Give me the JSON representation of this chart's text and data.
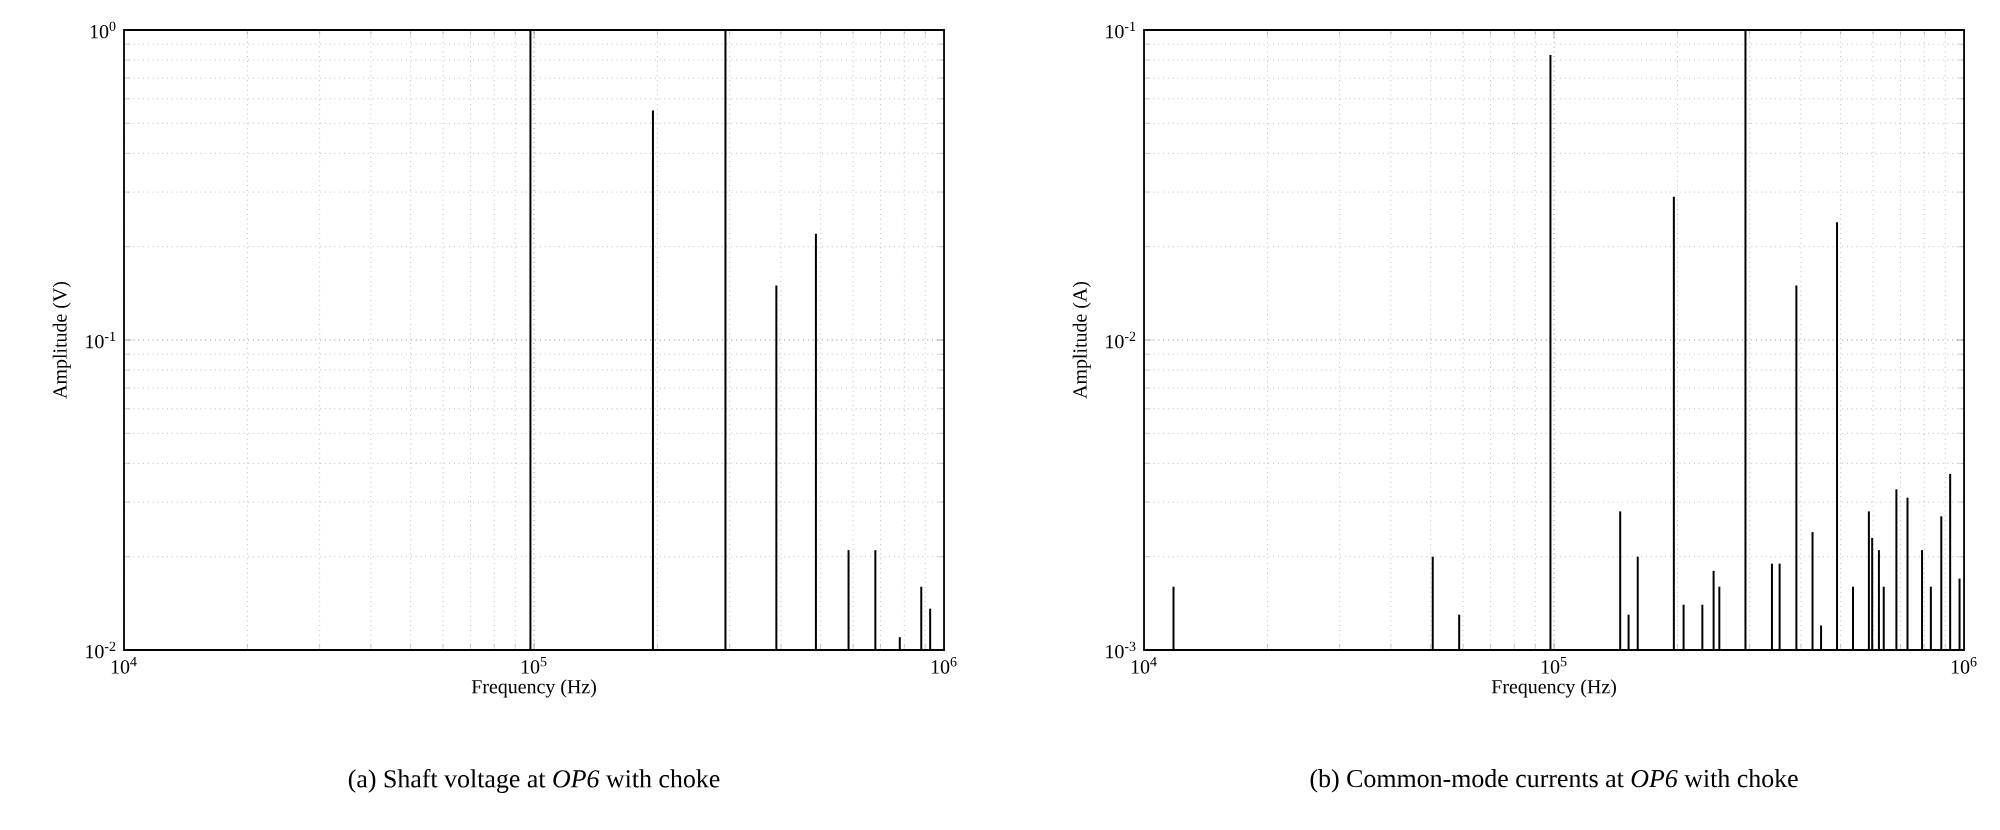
{
  "chart_data": [
    {
      "type": "bar",
      "title": "(a) Shaft voltage at *OP6* with choke",
      "xlabel": "Frequency (Hz)",
      "ylabel": "Amplitude (V)",
      "log": "xy",
      "grid": true,
      "x": [
        98000,
        195000,
        293000,
        390000,
        487000,
        585000,
        680000,
        780000,
        880000,
        925000
      ],
      "values": [
        1,
        0.55,
        1,
        0.15,
        0.22,
        0.021,
        0.021,
        0.011,
        0.016,
        0.0136
      ],
      "color": "#000000",
      "xlim": [
        10000,
        1000000
      ],
      "ylim": [
        0.01,
        1
      ],
      "xticks": [
        {
          "value": 10000,
          "label": "10$^{4}$"
        },
        {
          "value": 100000,
          "label": "10$^{5}$"
        },
        {
          "value": 1000000,
          "label": "10$^{6}$"
        }
      ],
      "yticks": [
        {
          "value": 0.01,
          "label": "10$^{-2}$"
        },
        {
          "value": 0.1,
          "label": "10$^{-1}$"
        },
        {
          "value": 1,
          "label": "10$^{0}$"
        }
      ]
    },
    {
      "type": "bar",
      "title": "(b) Common-mode currents at *OP6* with choke",
      "xlabel": "Frequency (Hz)",
      "ylabel": "Amplitude (A)",
      "log": "xy",
      "grid": true,
      "x": [
        11800,
        50600,
        58700,
        98000,
        145000,
        152000,
        160000,
        196000,
        207000,
        230000,
        245000,
        253000,
        293000,
        340000,
        355000,
        390000,
        427000,
        448000,
        490000,
        536000,
        586000,
        597000,
        620000,
        637000,
        684000,
        728000,
        790000,
        830000,
        880000,
        925000,
        975000
      ],
      "values": [
        0.0016,
        0.002,
        0.0013,
        0.083,
        0.0028,
        0.0013,
        0.002,
        0.029,
        0.0014,
        0.0014,
        0.0018,
        0.0016,
        0.1,
        0.0019,
        0.0019,
        0.015,
        0.0024,
        0.0012,
        0.024,
        0.0016,
        0.0028,
        0.0023,
        0.0021,
        0.0016,
        0.0033,
        0.0031,
        0.0021,
        0.0016,
        0.0027,
        0.0037,
        0.0017
      ],
      "color": "#000000",
      "xlim": [
        10000,
        1000000
      ],
      "ylim": [
        0.001,
        0.1
      ],
      "xticks": [
        {
          "value": 10000,
          "label": "10$^{4}$"
        },
        {
          "value": 100000,
          "label": "10$^{5}$"
        },
        {
          "value": 1000000,
          "label": "10$^{6}$"
        }
      ],
      "yticks": [
        {
          "value": 0.001,
          "label": "10$^{-3}$"
        },
        {
          "value": 0.01,
          "label": "10$^{-2}$"
        },
        {
          "value": 0.1,
          "label": "10$^{-1}$"
        }
      ]
    }
  ]
}
